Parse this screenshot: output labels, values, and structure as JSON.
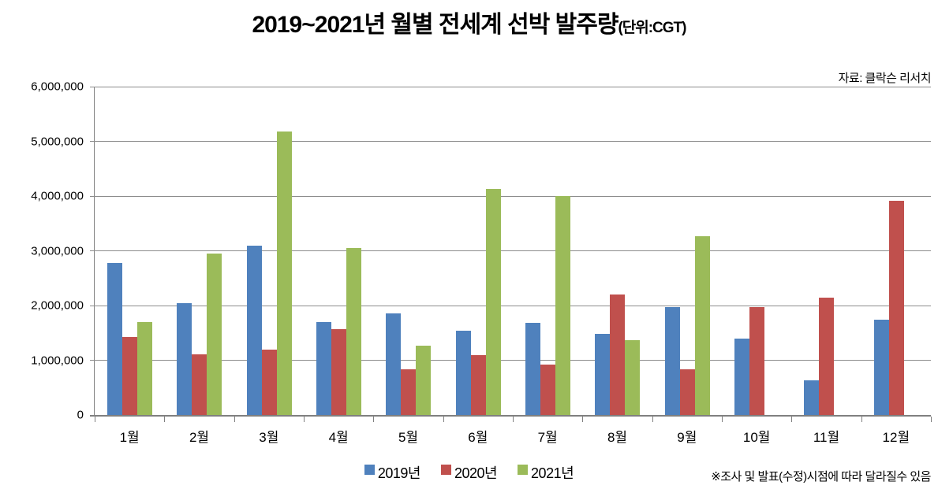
{
  "chart": {
    "title": "2019~2021년 월별 전세계 선박 발주량",
    "unit_label": "(단위:CGT)",
    "source": "자료: 클락슨 리서치",
    "footnote": "※조사 및 발표(수정)시점에 따라 달라질수 있음"
  },
  "chart_data": {
    "type": "bar",
    "title": "2019~2021년 월별 전세계 선박 발주량(단위:CGT)",
    "categories": [
      "1월",
      "2월",
      "3월",
      "4월",
      "5월",
      "6월",
      "7월",
      "8월",
      "9월",
      "10월",
      "11월",
      "12월"
    ],
    "series": [
      {
        "name": "2019년",
        "color": "#4F81BD",
        "values": [
          2780000,
          2050000,
          3100000,
          1700000,
          1860000,
          1540000,
          1680000,
          1480000,
          1970000,
          1400000,
          630000,
          1740000
        ]
      },
      {
        "name": "2020년",
        "color": "#C0504D",
        "values": [
          1430000,
          1110000,
          1200000,
          1570000,
          840000,
          1090000,
          920000,
          2200000,
          830000,
          1970000,
          2140000,
          3910000
        ]
      },
      {
        "name": "2021년",
        "color": "#9BBB59",
        "values": [
          1700000,
          2950000,
          5180000,
          3050000,
          1260000,
          4130000,
          4000000,
          1370000,
          3270000,
          null,
          null,
          null
        ]
      }
    ],
    "xlabel": "",
    "ylabel": "",
    "ylim": [
      0,
      6000000
    ],
    "ytick_interval": 1000000,
    "ytick_labels": [
      "0",
      "1,000,000",
      "2,000,000",
      "3,000,000",
      "4,000,000",
      "5,000,000",
      "6,000,000"
    ],
    "grid": true,
    "gridline_color": "#8C8C8C",
    "legend_position": "bottom"
  }
}
